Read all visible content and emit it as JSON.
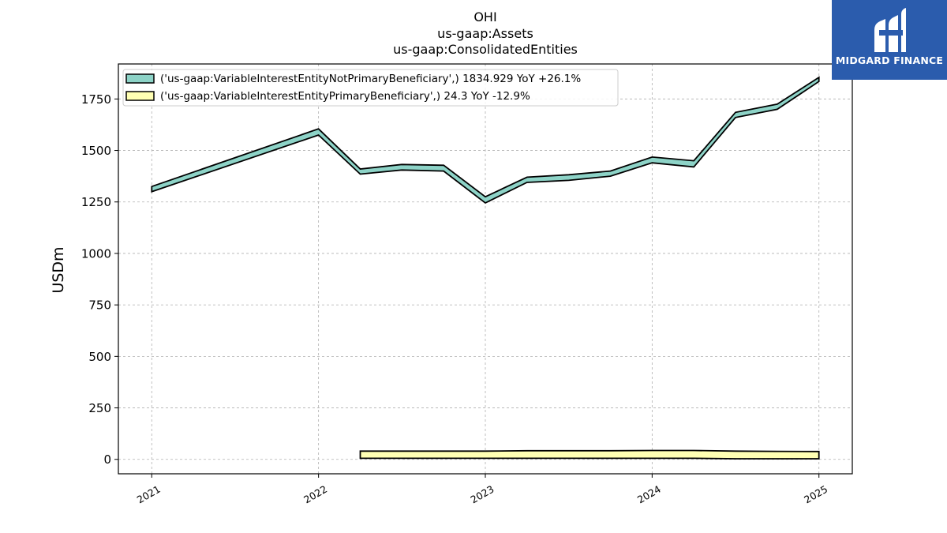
{
  "chart_data": {
    "type": "area",
    "title_lines": [
      "OHI",
      "us-gaap:Assets",
      "us-gaap:ConsolidatedEntities"
    ],
    "xlabel": "",
    "ylabel": "USDm",
    "ylim": [
      -70,
      1920
    ],
    "xlim": [
      2020.8,
      2025.2
    ],
    "yticks": [
      0,
      250,
      500,
      750,
      1000,
      1250,
      1500,
      1750
    ],
    "ytick_labels": [
      "0",
      "250",
      "500",
      "750",
      "1000",
      "1250",
      "1500",
      "1750"
    ],
    "xticks": [
      2021,
      2022,
      2023,
      2024,
      2025
    ],
    "xtick_labels": [
      "2021",
      "2022",
      "2023",
      "2024",
      "2025"
    ],
    "grid": true,
    "legend_position": "top-left",
    "series": [
      {
        "name": "('us-gaap:VariableInterestEntityNotPrimaryBeneficiary',) 1834.929 YoY +26.1%",
        "color": "#8dd3c7",
        "x": [
          2021.0,
          2022.0,
          2022.25,
          2022.5,
          2022.75,
          2023.0,
          2023.25,
          2023.5,
          2023.75,
          2024.0,
          2024.25,
          2024.5,
          2024.75,
          2025.0
        ],
        "lower": [
          1300,
          1575,
          1385,
          1405,
          1400,
          1245,
          1345,
          1355,
          1375,
          1440,
          1420,
          1660,
          1700,
          1835
        ],
        "upper": [
          1325,
          1605,
          1410,
          1432,
          1428,
          1275,
          1370,
          1382,
          1400,
          1468,
          1450,
          1685,
          1725,
          1855
        ]
      },
      {
        "name": "('us-gaap:VariableInterestEntityPrimaryBeneficiary',) 24.3 YoY -12.9%",
        "color": "#ffffb3",
        "x": [
          2022.25,
          2022.5,
          2022.75,
          2023.0,
          2023.25,
          2023.5,
          2023.75,
          2024.0,
          2024.25,
          2024.5,
          2024.75,
          2025.0
        ],
        "lower": [
          5,
          5,
          5,
          5,
          5,
          5,
          5,
          5,
          5,
          3,
          3,
          3
        ],
        "upper": [
          40,
          40,
          40,
          40,
          42,
          42,
          42,
          43,
          43,
          40,
          39,
          38
        ]
      }
    ]
  },
  "logo": {
    "text": "MIDGARD FINANCE"
  }
}
